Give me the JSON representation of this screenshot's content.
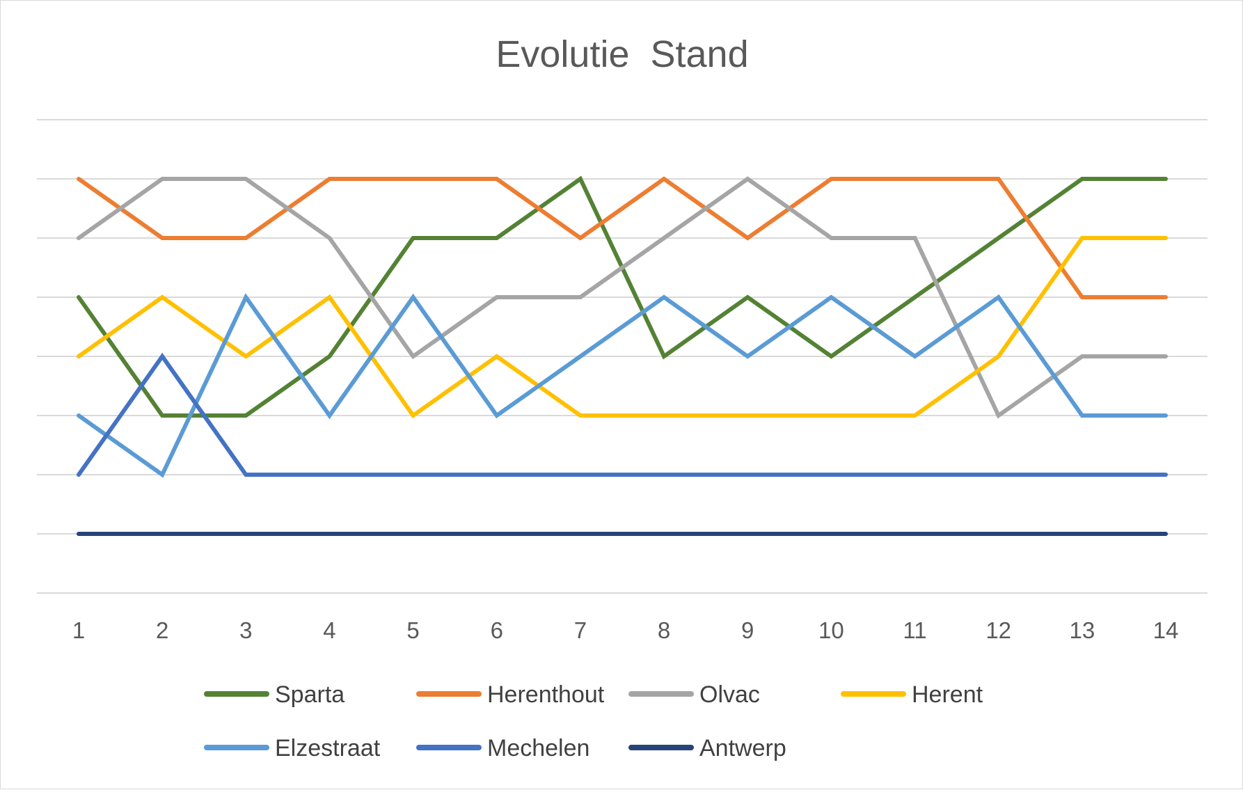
{
  "chart_data": {
    "type": "line",
    "title": "Evolutie  Stand",
    "xlabel": "",
    "ylabel": "",
    "categories": [
      "1",
      "2",
      "3",
      "4",
      "5",
      "6",
      "7",
      "8",
      "9",
      "10",
      "11",
      "12",
      "13",
      "14"
    ],
    "ylim": [
      0,
      8
    ],
    "y_axis_labels_shown": false,
    "grid": true,
    "legend_position": "bottom",
    "series": [
      {
        "name": "Sparta",
        "color": "#548235",
        "values": [
          5,
          3,
          3,
          4,
          6,
          6,
          7,
          4,
          5,
          4,
          5,
          6,
          7,
          7
        ]
      },
      {
        "name": "Herenthout",
        "color": "#ED7D31",
        "values": [
          7,
          6,
          6,
          7,
          7,
          7,
          6,
          7,
          6,
          7,
          7,
          7,
          5,
          5
        ]
      },
      {
        "name": "Olvac",
        "color": "#A5A5A5",
        "values": [
          6,
          7,
          7,
          6,
          4,
          5,
          5,
          6,
          7,
          6,
          6,
          3,
          4,
          4
        ]
      },
      {
        "name": "Herent",
        "color": "#FFC000",
        "values": [
          4,
          5,
          4,
          5,
          3,
          4,
          3,
          3,
          3,
          3,
          3,
          4,
          6,
          6
        ]
      },
      {
        "name": "Elzestraat",
        "color": "#5B9BD5",
        "values": [
          3,
          2,
          5,
          3,
          5,
          3,
          4,
          5,
          4,
          5,
          4,
          5,
          3,
          3
        ]
      },
      {
        "name": "Mechelen",
        "color": "#4472C4",
        "values": [
          2,
          4,
          2,
          2,
          2,
          2,
          2,
          2,
          2,
          2,
          2,
          2,
          2,
          2
        ]
      },
      {
        "name": "Antwerp",
        "color": "#264478",
        "values": [
          1,
          1,
          1,
          1,
          1,
          1,
          1,
          1,
          1,
          1,
          1,
          1,
          1,
          1
        ]
      }
    ]
  }
}
